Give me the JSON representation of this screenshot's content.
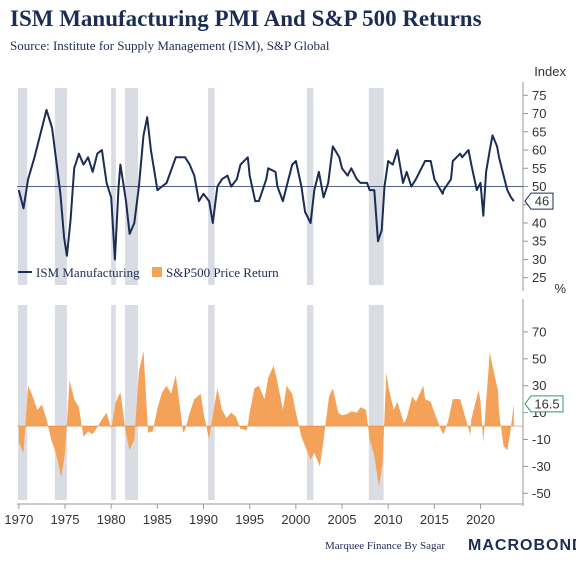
{
  "header": {
    "title": "ISM Manufacturing PMI And S&P 500 Returns",
    "subtitle": "Source: Institute for Supply Management (ISM), S&P Global"
  },
  "footer": {
    "credit": "Marquee Finance By Sagar",
    "brand": "MACROBOND"
  },
  "colors": {
    "ism_line": "#1b2c55",
    "sp500_area": "#f4a259",
    "recession_band": "#d9dce3",
    "latest_sp_box": "#2e9a66"
  },
  "chart_data": [
    {
      "type": "line",
      "ylabel": "Index",
      "ylim": [
        23,
        77
      ],
      "yticks": [
        "25",
        "30",
        "35",
        "40",
        "45",
        "50",
        "55",
        "60",
        "65",
        "70",
        "75"
      ],
      "reference_line": 50,
      "grid": false,
      "legend_position": "bottom-left",
      "latest_label": "46",
      "latest_value": 46,
      "series": [
        {
          "name": "ISM Manufacturing",
          "points": [
            [
              1970,
              49
            ],
            [
              1970.5,
              44
            ],
            [
              1971,
              52
            ],
            [
              1971.7,
              58
            ],
            [
              1972.5,
              66
            ],
            [
              1973,
              71
            ],
            [
              1973.6,
              66
            ],
            [
              1974,
              58
            ],
            [
              1974.5,
              48
            ],
            [
              1974.9,
              36
            ],
            [
              1975.2,
              31
            ],
            [
              1975.6,
              41
            ],
            [
              1976,
              55
            ],
            [
              1976.5,
              59
            ],
            [
              1977,
              56
            ],
            [
              1977.5,
              58
            ],
            [
              1978,
              54
            ],
            [
              1978.5,
              59
            ],
            [
              1979,
              60
            ],
            [
              1979.5,
              51
            ],
            [
              1980,
              47
            ],
            [
              1980.4,
              30
            ],
            [
              1980.8,
              50
            ],
            [
              1981,
              56
            ],
            [
              1981.6,
              46
            ],
            [
              1982,
              37
            ],
            [
              1982.5,
              40
            ],
            [
              1983,
              50
            ],
            [
              1983.5,
              64
            ],
            [
              1983.9,
              69
            ],
            [
              1984.3,
              60
            ],
            [
              1985,
              49
            ],
            [
              1985.5,
              50
            ],
            [
              1986,
              51
            ],
            [
              1987,
              58
            ],
            [
              1988,
              58
            ],
            [
              1988.5,
              56
            ],
            [
              1989,
              53
            ],
            [
              1989.5,
              46
            ],
            [
              1990,
              48
            ],
            [
              1990.6,
              46
            ],
            [
              1991,
              40
            ],
            [
              1991.5,
              50
            ],
            [
              1992,
              52
            ],
            [
              1992.6,
              53
            ],
            [
              1993,
              50
            ],
            [
              1993.6,
              52
            ],
            [
              1994,
              56
            ],
            [
              1994.8,
              58
            ],
            [
              1995,
              53
            ],
            [
              1995.6,
              46
            ],
            [
              1996,
              46
            ],
            [
              1996.8,
              52
            ],
            [
              1997,
              55
            ],
            [
              1997.8,
              54
            ],
            [
              1998,
              50
            ],
            [
              1998.6,
              46
            ],
            [
              1999,
              50
            ],
            [
              1999.6,
              56
            ],
            [
              2000,
              57
            ],
            [
              2000.6,
              50
            ],
            [
              2001,
              43
            ],
            [
              2001.6,
              40
            ],
            [
              2002,
              49
            ],
            [
              2002.5,
              54
            ],
            [
              2003,
              47
            ],
            [
              2003.5,
              51
            ],
            [
              2004,
              61
            ],
            [
              2004.7,
              58
            ],
            [
              2005,
              55
            ],
            [
              2005.6,
              53
            ],
            [
              2006,
              55
            ],
            [
              2006.6,
              52
            ],
            [
              2007,
              51
            ],
            [
              2007.7,
              51
            ],
            [
              2008,
              49
            ],
            [
              2008.5,
              49
            ],
            [
              2008.9,
              35
            ],
            [
              2009.3,
              38
            ],
            [
              2009.6,
              50
            ],
            [
              2010,
              57
            ],
            [
              2010.5,
              56
            ],
            [
              2011,
              60
            ],
            [
              2011.6,
              51
            ],
            [
              2012,
              54
            ],
            [
              2012.5,
              50
            ],
            [
              2013,
              52
            ],
            [
              2013.8,
              56
            ],
            [
              2014,
              57
            ],
            [
              2014.6,
              57
            ],
            [
              2015,
              52
            ],
            [
              2015.9,
              48
            ],
            [
              2016,
              49
            ],
            [
              2016.8,
              52
            ],
            [
              2017,
              57
            ],
            [
              2017.8,
              59
            ],
            [
              2018,
              58
            ],
            [
              2018.7,
              60
            ],
            [
              2019,
              56
            ],
            [
              2019.6,
              49
            ],
            [
              2020,
              51
            ],
            [
              2020.3,
              42
            ],
            [
              2020.6,
              54
            ],
            [
              2021,
              60
            ],
            [
              2021.3,
              64
            ],
            [
              2021.8,
              61
            ],
            [
              2022,
              58
            ],
            [
              2022.5,
              53
            ],
            [
              2022.9,
              49
            ],
            [
              2023.3,
              47
            ],
            [
              2023.6,
              46
            ]
          ]
        }
      ],
      "recessions": [
        [
          1969.9,
          1970.9
        ],
        [
          1973.9,
          1975.2
        ],
        [
          1980.0,
          1980.5
        ],
        [
          1981.5,
          1982.9
        ],
        [
          1990.5,
          1991.2
        ],
        [
          2001.2,
          2001.9
        ],
        [
          2007.9,
          2009.5
        ]
      ]
    },
    {
      "type": "area",
      "ylabel": "%",
      "ylim": [
        -55,
        90
      ],
      "yticks": [
        "-50",
        "-30",
        "-10",
        "10",
        "30",
        "50",
        "70"
      ],
      "grid": false,
      "latest_label": "16.5",
      "latest_value": 16.5,
      "series": [
        {
          "name": "S&P500 Price Return",
          "points": [
            [
              1970,
              -12
            ],
            [
              1970.5,
              -20
            ],
            [
              1971,
              30
            ],
            [
              1971.5,
              22
            ],
            [
              1972,
              12
            ],
            [
              1972.5,
              16
            ],
            [
              1973,
              5
            ],
            [
              1973.5,
              -10
            ],
            [
              1974,
              -20
            ],
            [
              1974.6,
              -38
            ],
            [
              1975,
              -20
            ],
            [
              1975.5,
              34
            ],
            [
              1976,
              20
            ],
            [
              1976.5,
              14
            ],
            [
              1977,
              -8
            ],
            [
              1977.5,
              -4
            ],
            [
              1978,
              -6
            ],
            [
              1978.5,
              -1
            ],
            [
              1979,
              5
            ],
            [
              1979.5,
              10
            ],
            [
              1980,
              -2
            ],
            [
              1980.5,
              18
            ],
            [
              1981,
              25
            ],
            [
              1981.6,
              -6
            ],
            [
              1982,
              -18
            ],
            [
              1982.5,
              -10
            ],
            [
              1983,
              40
            ],
            [
              1983.5,
              56
            ],
            [
              1984,
              -5
            ],
            [
              1984.5,
              -4
            ],
            [
              1985,
              13
            ],
            [
              1985.5,
              25
            ],
            [
              1986,
              30
            ],
            [
              1986.5,
              24
            ],
            [
              1987,
              38
            ],
            [
              1987.8,
              -5
            ],
            [
              1988,
              -3
            ],
            [
              1988.5,
              10
            ],
            [
              1989,
              20
            ],
            [
              1989.7,
              24
            ],
            [
              1990,
              10
            ],
            [
              1990.6,
              -10
            ],
            [
              1991,
              8
            ],
            [
              1991.5,
              28
            ],
            [
              1992,
              12
            ],
            [
              1992.5,
              6
            ],
            [
              1993,
              10
            ],
            [
              1993.5,
              7
            ],
            [
              1994,
              -2
            ],
            [
              1994.7,
              -3
            ],
            [
              1995,
              10
            ],
            [
              1995.5,
              28
            ],
            [
              1996,
              30
            ],
            [
              1996.6,
              20
            ],
            [
              1997,
              36
            ],
            [
              1997.6,
              45
            ],
            [
              1998,
              33
            ],
            [
              1998.6,
              12
            ],
            [
              1999,
              30
            ],
            [
              1999.6,
              24
            ],
            [
              2000,
              10
            ],
            [
              2000.6,
              -8
            ],
            [
              2001,
              -15
            ],
            [
              2001.6,
              -25
            ],
            [
              2002,
              -20
            ],
            [
              2002.6,
              -30
            ],
            [
              2003,
              -10
            ],
            [
              2003.6,
              22
            ],
            [
              2004,
              28
            ],
            [
              2004.6,
              10
            ],
            [
              2005,
              8
            ],
            [
              2005.6,
              9
            ],
            [
              2006,
              11
            ],
            [
              2006.6,
              10
            ],
            [
              2007,
              14
            ],
            [
              2007.6,
              12
            ],
            [
              2008,
              -10
            ],
            [
              2008.5,
              -22
            ],
            [
              2009,
              -45
            ],
            [
              2009.4,
              -28
            ],
            [
              2009.8,
              40
            ],
            [
              2010,
              30
            ],
            [
              2010.6,
              12
            ],
            [
              2011,
              18
            ],
            [
              2011.7,
              2
            ],
            [
              2012,
              6
            ],
            [
              2012.6,
              22
            ],
            [
              2013,
              18
            ],
            [
              2013.8,
              30
            ],
            [
              2014,
              20
            ],
            [
              2014.6,
              18
            ],
            [
              2015,
              10
            ],
            [
              2015.8,
              -4
            ],
            [
              2016,
              -6
            ],
            [
              2016.5,
              4
            ],
            [
              2017,
              20
            ],
            [
              2017.8,
              20
            ],
            [
              2018,
              15
            ],
            [
              2018.9,
              -7
            ],
            [
              2019,
              5
            ],
            [
              2019.8,
              27
            ],
            [
              2020,
              18
            ],
            [
              2020.3,
              -12
            ],
            [
              2020.6,
              18
            ],
            [
              2021,
              55
            ],
            [
              2021.3,
              45
            ],
            [
              2021.9,
              26
            ],
            [
              2022,
              10
            ],
            [
              2022.5,
              -15
            ],
            [
              2022.9,
              -18
            ],
            [
              2023.2,
              -6
            ],
            [
              2023.6,
              16.5
            ]
          ]
        }
      ],
      "recessions": [
        [
          1969.9,
          1970.9
        ],
        [
          1973.9,
          1975.2
        ],
        [
          1980.0,
          1980.5
        ],
        [
          1981.5,
          1982.9
        ],
        [
          1990.5,
          1991.2
        ],
        [
          2001.2,
          2001.9
        ],
        [
          2007.9,
          2009.5
        ]
      ]
    }
  ],
  "x_axis": {
    "xlim": [
      1969.8,
      2024.6
    ],
    "ticks": [
      "1970",
      "1975",
      "1980",
      "1985",
      "1990",
      "1995",
      "2000",
      "2005",
      "2010",
      "2015",
      "2020"
    ]
  }
}
